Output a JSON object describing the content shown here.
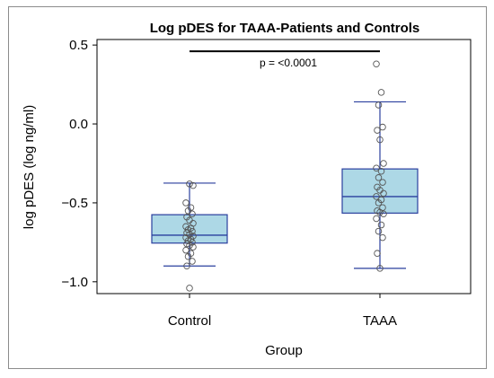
{
  "chart_data": {
    "type": "box",
    "title": "Log pDES for TAAA-Patients and Controls",
    "xlabel": "Group",
    "ylabel": "log pDES (log ng/ml)",
    "ylim": [
      -1.075,
      0.535
    ],
    "yticks": [
      0.5,
      0.0,
      -0.5,
      -1.0
    ],
    "ytick_labels": [
      "0.5",
      "0.0",
      "−0.5",
      "−1.0"
    ],
    "categories": [
      "Control",
      "TAAA"
    ],
    "grid": false,
    "legend": "none",
    "colors": {
      "box_fill": "#add8e6",
      "box_stroke": "#2a3f9e",
      "point_stroke": "#555555"
    },
    "boxes": [
      {
        "category": "Control",
        "whisker_low": -0.9,
        "q1": -0.755,
        "median": -0.705,
        "q3": -0.575,
        "whisker_high": -0.375
      },
      {
        "category": "TAAA",
        "whisker_low": -0.915,
        "q1": -0.565,
        "median": -0.46,
        "q3": -0.285,
        "whisker_high": 0.14
      }
    ],
    "points": [
      {
        "category": "Control",
        "values": [
          -1.04,
          -0.9,
          -0.87,
          -0.84,
          -0.82,
          -0.8,
          -0.78,
          -0.77,
          -0.76,
          -0.75,
          -0.74,
          -0.73,
          -0.72,
          -0.71,
          -0.7,
          -0.69,
          -0.68,
          -0.67,
          -0.66,
          -0.65,
          -0.63,
          -0.61,
          -0.59,
          -0.57,
          -0.55,
          -0.53,
          -0.5,
          -0.39,
          -0.38
        ]
      },
      {
        "category": "TAAA",
        "values": [
          -0.915,
          -0.82,
          -0.72,
          -0.68,
          -0.64,
          -0.6,
          -0.57,
          -0.56,
          -0.55,
          -0.53,
          -0.5,
          -0.48,
          -0.46,
          -0.44,
          -0.42,
          -0.4,
          -0.37,
          -0.34,
          -0.3,
          -0.28,
          -0.25,
          -0.1,
          -0.04,
          -0.02,
          0.12,
          0.2,
          0.38
        ]
      }
    ],
    "annotation": {
      "text": "p = <0.0001",
      "from": "Control",
      "to": "TAAA",
      "y": 0.46
    }
  }
}
